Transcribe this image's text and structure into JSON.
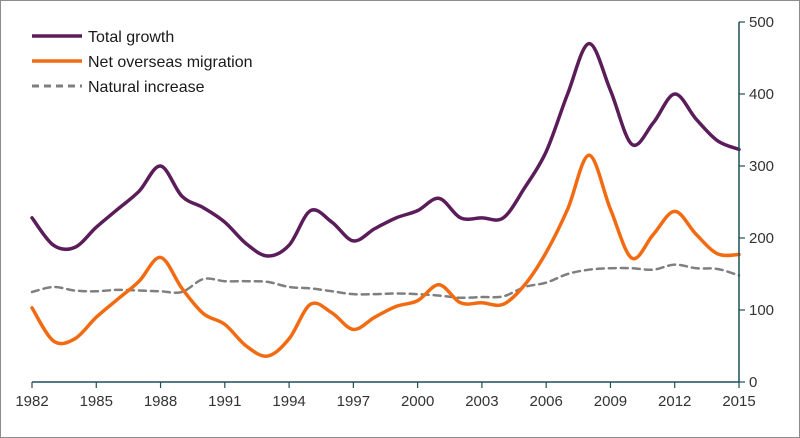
{
  "chart_data": {
    "type": "line",
    "x": [
      1982,
      1983,
      1984,
      1985,
      1986,
      1987,
      1988,
      1989,
      1990,
      1991,
      1992,
      1993,
      1994,
      1995,
      1996,
      1997,
      1998,
      1999,
      2000,
      2001,
      2002,
      2003,
      2004,
      2005,
      2006,
      2007,
      2008,
      2009,
      2010,
      2011,
      2012,
      2013,
      2014,
      2015
    ],
    "x_ticks": [
      "1982",
      "1985",
      "1988",
      "1991",
      "1994",
      "1997",
      "2000",
      "2003",
      "2006",
      "2009",
      "2012",
      "2015"
    ],
    "y_ticks": [
      "0",
      "100",
      "200",
      "300",
      "400",
      "500"
    ],
    "ylim": [
      0,
      500
    ],
    "xlim": [
      1982,
      2015
    ],
    "y_axis_position": "right",
    "grid": false,
    "legend_position": "top-left",
    "series": [
      {
        "name": "Total growth",
        "color": "#5b1d5a",
        "style": "solid",
        "values": [
          228,
          190,
          187,
          215,
          240,
          265,
          300,
          258,
          242,
          222,
          192,
          175,
          190,
          238,
          222,
          196,
          213,
          228,
          238,
          255,
          228,
          228,
          228,
          270,
          320,
          400,
          470,
          405,
          330,
          360,
          400,
          365,
          335,
          323
        ]
      },
      {
        "name": "Net overseas migration",
        "color": "#f26b12",
        "style": "solid",
        "values": [
          103,
          57,
          60,
          90,
          115,
          140,
          173,
          130,
          95,
          80,
          50,
          36,
          60,
          108,
          96,
          73,
          90,
          105,
          113,
          135,
          110,
          110,
          108,
          135,
          180,
          240,
          315,
          240,
          172,
          205,
          237,
          205,
          178,
          177
        ]
      },
      {
        "name": "Natural increase",
        "color": "#7f7f7f",
        "style": "dashed",
        "values": [
          125,
          132,
          127,
          126,
          128,
          127,
          126,
          125,
          143,
          140,
          140,
          139,
          132,
          130,
          126,
          122,
          122,
          123,
          122,
          120,
          117,
          118,
          119,
          132,
          138,
          150,
          156,
          158,
          158,
          156,
          163,
          158,
          157,
          148
        ]
      }
    ]
  }
}
